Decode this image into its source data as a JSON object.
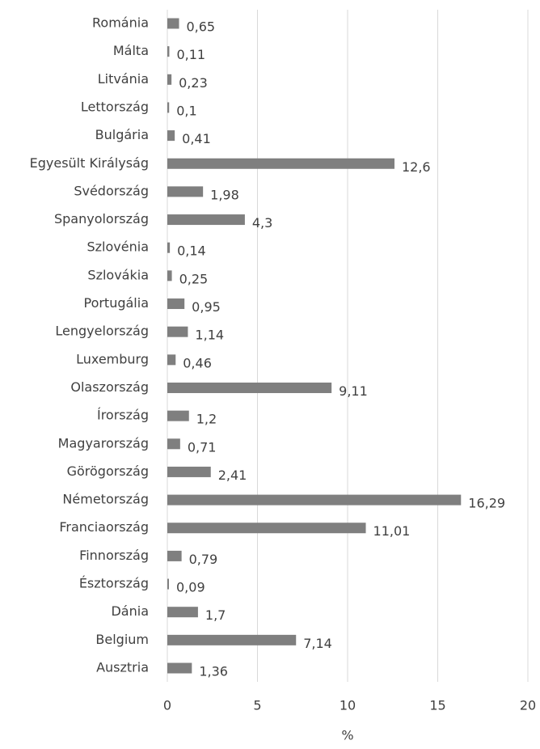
{
  "chart_data": {
    "type": "barh",
    "categories": [
      "Románia",
      "Málta",
      "Litvánia",
      "Lettország",
      "Bulgária",
      "Egyesült Királyság",
      "Svédország",
      "Spanyolország",
      "Szlovénia",
      "Szlovákia",
      "Portugália",
      "Lengyelország",
      "Luxemburg",
      "Olaszország",
      "Írország",
      "Magyarország",
      "Görögország",
      "Németország",
      "Franciaország",
      "Finnország",
      "Észtország",
      "Dánia",
      "Belgium",
      "Ausztria"
    ],
    "values": [
      0.65,
      0.11,
      0.23,
      0.1,
      0.41,
      12.6,
      1.98,
      4.3,
      0.14,
      0.25,
      0.95,
      1.14,
      0.46,
      9.11,
      1.2,
      0.71,
      2.41,
      16.29,
      11.01,
      0.79,
      0.09,
      1.7,
      7.14,
      1.36
    ],
    "value_labels": [
      "0,65",
      "0,11",
      "0,23",
      "0,1",
      "0,41",
      "12,6",
      "1,98",
      "4,3",
      "0,14",
      "0,25",
      "0,95",
      "1,14",
      "0,46",
      "9,11",
      "1,2",
      "0,71",
      "2,41",
      "16,29",
      "11,01",
      "0,79",
      "0,09",
      "1,7",
      "7,14",
      "1,36"
    ],
    "color": "#7f7f7f",
    "x_label": "%",
    "xlim": [
      0,
      20
    ],
    "xticks": [
      0,
      5,
      10,
      15,
      20
    ],
    "grid": true
  }
}
